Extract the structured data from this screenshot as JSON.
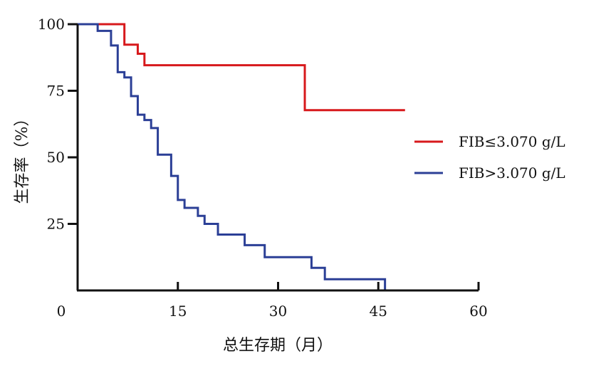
{
  "chart_data": {
    "type": "line",
    "step": true,
    "title": "",
    "xlabel": "总生存期（月）",
    "ylabel": "生存率（%）",
    "xlim": [
      0,
      60
    ],
    "ylim": [
      0,
      100
    ],
    "x_ticks": [
      "0",
      "15",
      "30",
      "45",
      "60"
    ],
    "y_ticks": [
      "25",
      "50",
      "75",
      "100"
    ],
    "x_tick_values": [
      0,
      15,
      30,
      45,
      60
    ],
    "y_tick_values": [
      25,
      50,
      75,
      100
    ],
    "grid": false,
    "legend_position": "right",
    "series": [
      {
        "name": "FIB≤3.070 g/L",
        "color": "#d7191c",
        "x": [
          0,
          7,
          9,
          10,
          34,
          49
        ],
        "y": [
          100,
          92.3,
          88.9,
          84.6,
          67.7,
          67.7
        ]
      },
      {
        "name": "FIB>3.070 g/L",
        "color": "#2b3f96",
        "x": [
          0,
          3,
          5,
          6,
          7,
          8,
          9,
          10,
          11,
          12,
          14,
          15,
          16,
          18,
          19,
          21,
          25,
          28,
          35,
          37,
          46,
          46
        ],
        "y": [
          100,
          97.5,
          92,
          82,
          80,
          73,
          66,
          64,
          61,
          51,
          43,
          34,
          31,
          28,
          25,
          21,
          17,
          12.5,
          8.5,
          4.2,
          4.2,
          0
        ]
      }
    ]
  }
}
